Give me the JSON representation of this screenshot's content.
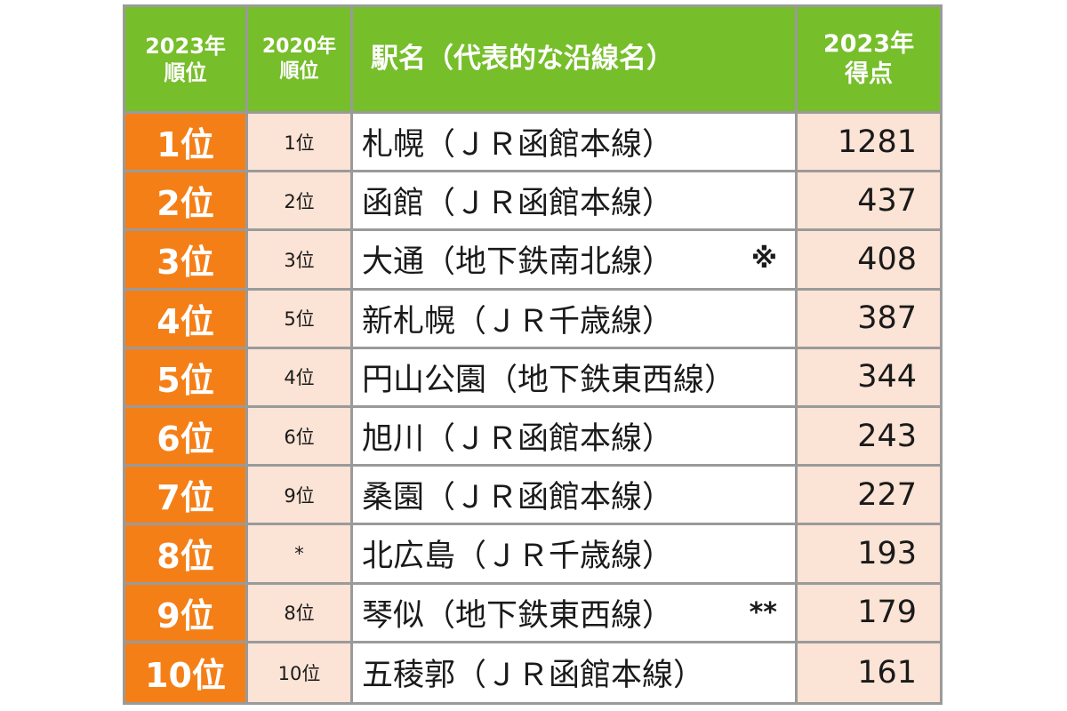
{
  "table": {
    "headers": {
      "rank2023": [
        "2023年",
        "順位"
      ],
      "rank2020": [
        "2020年",
        "順位"
      ],
      "station": "駅名（代表的な沿線名）",
      "score2023": [
        "2023年",
        "得点"
      ]
    },
    "rows": [
      {
        "rank2023": "1位",
        "rank2020": "1位",
        "station": "札幌（ＪＲ函館本線）",
        "note": "",
        "score": "1281"
      },
      {
        "rank2023": "2位",
        "rank2020": "2位",
        "station": "函館（ＪＲ函館本線）",
        "note": "",
        "score": "437"
      },
      {
        "rank2023": "3位",
        "rank2020": "3位",
        "station": "大通（地下鉄南北線）",
        "note": "※",
        "score": "408"
      },
      {
        "rank2023": "4位",
        "rank2020": "5位",
        "station": "新札幌（ＪＲ千歳線）",
        "note": "",
        "score": "387"
      },
      {
        "rank2023": "5位",
        "rank2020": "4位",
        "station": "円山公園（地下鉄東西線）",
        "note": "",
        "score": "344"
      },
      {
        "rank2023": "6位",
        "rank2020": "6位",
        "station": "旭川（ＪＲ函館本線）",
        "note": "",
        "score": "243"
      },
      {
        "rank2023": "7位",
        "rank2020": "9位",
        "station": "桑園（ＪＲ函館本線）",
        "note": "",
        "score": "227"
      },
      {
        "rank2023": "8位",
        "rank2020": "*",
        "station": "北広島（ＪＲ千歳線）",
        "note": "",
        "score": "193"
      },
      {
        "rank2023": "9位",
        "rank2020": "8位",
        "station": "琴似（地下鉄東西線）",
        "note": "**",
        "score": "179"
      },
      {
        "rank2023": "10位",
        "rank2020": "10位",
        "station": "五稜郭（ＪＲ函館本線）",
        "note": "",
        "score": "161"
      }
    ]
  },
  "colors": {
    "header_green": "#76be2a",
    "rank_orange": "#f57f17",
    "light_peach": "#fbe3d5",
    "grid_gray": "#9a9a9a"
  }
}
